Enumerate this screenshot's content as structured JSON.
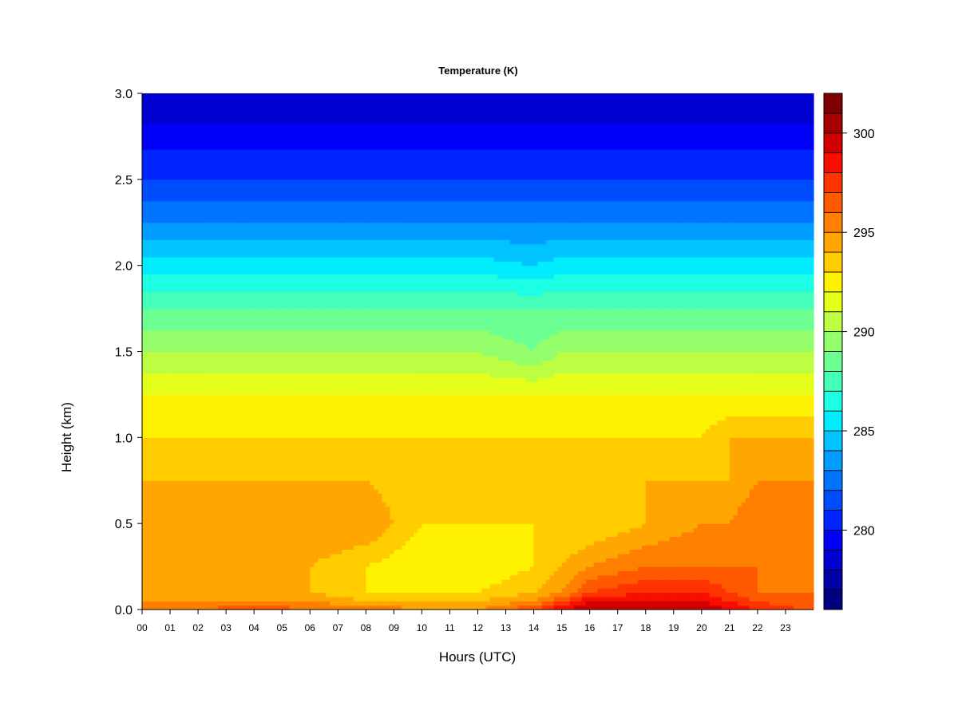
{
  "chart_data": {
    "type": "heatmap",
    "title": "Temperature (K)",
    "xlabel": "Hours (UTC)",
    "ylabel": "Height (km)",
    "x_ticks": [
      "00",
      "01",
      "02",
      "03",
      "04",
      "05",
      "06",
      "07",
      "08",
      "09",
      "10",
      "11",
      "12",
      "13",
      "14",
      "15",
      "16",
      "17",
      "18",
      "19",
      "20",
      "21",
      "22",
      "23"
    ],
    "y_ticks": [
      "0.0",
      "0.5",
      "1.0",
      "1.5",
      "2.0",
      "2.5",
      "3.0"
    ],
    "xlim": [
      0,
      24
    ],
    "ylim": [
      0,
      3
    ],
    "colorbar": {
      "ticks": [
        "280",
        "285",
        "290",
        "295",
        "300"
      ],
      "tick_values": [
        280,
        285,
        290,
        295,
        300
      ],
      "range": [
        276,
        302
      ],
      "levels": [
        276,
        277,
        278,
        279,
        280,
        281,
        282,
        283,
        284,
        285,
        286,
        287,
        288,
        289,
        290,
        291,
        292,
        293,
        294,
        295,
        296,
        297,
        298,
        299,
        300,
        301,
        302
      ],
      "colors": [
        "#00007F",
        "#0000A8",
        "#0000D1",
        "#0000FA",
        "#0024FF",
        "#004CFF",
        "#0074FF",
        "#009CFF",
        "#00C4FF",
        "#00ECFF",
        "#1CFFE2",
        "#44FFBA",
        "#6CFF92",
        "#94FF6A",
        "#BCFF42",
        "#E4FF1A",
        "#FFF200",
        "#FFCC00",
        "#FFA600",
        "#FF8000",
        "#FF5900",
        "#FF3300",
        "#F90D00",
        "#D10000",
        "#A80000",
        "#7F0000"
      ]
    },
    "time_hours": [
      0,
      2,
      4,
      6,
      8,
      10,
      12,
      14,
      15,
      16,
      18,
      20,
      21,
      22,
      23.8
    ],
    "heights_km": [
      0.0,
      0.05,
      0.1,
      0.25,
      0.5,
      0.75,
      1.0,
      1.25,
      1.5,
      1.75,
      2.0,
      2.25,
      2.5,
      2.75,
      3.0
    ],
    "values_K": [
      [
        296,
        296,
        297,
        296,
        296,
        295,
        295,
        297,
        299,
        300,
        300,
        300,
        299,
        298,
        297
      ],
      [
        295,
        295,
        295,
        295,
        294,
        294,
        294,
        295,
        297,
        299,
        299,
        299,
        298,
        297,
        296
      ],
      [
        294,
        294,
        294,
        294,
        293,
        293,
        293,
        294,
        295,
        297,
        298,
        298,
        297,
        296,
        296
      ],
      [
        294,
        294,
        294,
        294,
        293,
        292,
        292,
        293,
        294,
        295,
        296,
        296,
        296,
        296,
        295
      ],
      [
        295,
        295,
        295,
        295,
        295,
        293,
        293,
        293,
        293,
        293,
        294,
        295,
        295,
        296,
        296
      ],
      [
        294,
        294,
        294,
        294,
        294,
        293,
        293,
        293,
        293,
        293,
        294,
        294,
        294,
        295,
        295
      ],
      [
        293,
        293,
        293,
        293,
        293,
        293,
        293,
        293,
        293,
        293,
        293,
        293,
        294,
        294,
        294
      ],
      [
        292,
        292,
        292,
        292,
        292,
        292,
        292,
        292,
        292,
        292,
        292,
        292,
        292,
        292,
        292
      ],
      [
        290,
        290,
        290,
        290,
        290,
        290,
        290,
        289,
        290,
        290,
        290,
        290,
        290,
        290,
        290
      ],
      [
        288,
        288,
        288,
        288,
        288,
        288,
        288,
        288,
        288,
        288,
        288,
        288,
        288,
        288,
        288
      ],
      [
        285.5,
        285.5,
        285.5,
        285.5,
        285.5,
        285.5,
        285.5,
        285,
        285.5,
        285.5,
        285.5,
        285.5,
        285.5,
        285.5,
        285.5
      ],
      [
        283,
        283,
        283,
        283,
        283,
        283,
        283,
        283,
        283,
        283,
        283,
        283,
        283,
        283,
        283
      ],
      [
        281,
        281,
        281,
        281,
        281,
        281,
        281,
        281,
        281,
        281,
        281,
        281,
        281,
        281,
        281
      ],
      [
        279.5,
        279.5,
        279.5,
        279.5,
        279.5,
        279.5,
        279.5,
        279.5,
        279.5,
        279.5,
        279.5,
        279.5,
        279.5,
        279.5,
        279.5
      ],
      [
        278,
        278,
        278,
        278,
        278,
        278,
        278,
        278,
        278,
        278,
        278,
        278,
        278,
        278,
        278
      ]
    ]
  }
}
